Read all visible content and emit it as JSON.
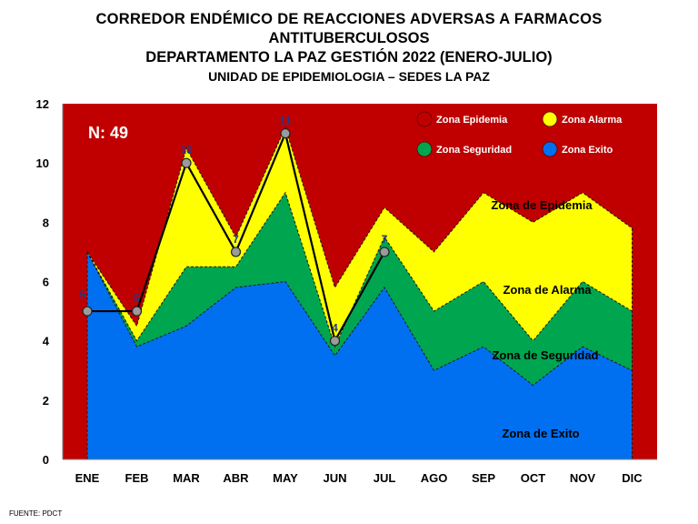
{
  "header": {
    "title_line1": "CORREDOR ENDÉMICO DE REACCIONES ADVERSAS  A FARMACOS",
    "title_line2": "ANTITUBERCULOSOS",
    "title_line3": "DEPARTAMENTO  LA PAZ GESTIÓN 2022 (ENERO-JULIO)",
    "subtitle": "UNIDAD DE EPIDEMIOLOGIA – SEDES LA PAZ"
  },
  "footer": {
    "source": "FUENTE:  PDCT"
  },
  "colors": {
    "epidemia": "#c00000",
    "alarma": "#ffff00",
    "seguridad": "#00a550",
    "exito": "#0070f0",
    "cases_line": "#000000",
    "marker_fill": "#9b9b9b",
    "point_label": "#1f3a8a"
  },
  "chart_data": {
    "type": "area",
    "categories": [
      "ENE",
      "FEB",
      "MAR",
      "ABR",
      "MAY",
      "JUN",
      "JUL",
      "AGO",
      "SEP",
      "OCT",
      "NOV",
      "DIC"
    ],
    "ylim": [
      0,
      12
    ],
    "yticks": [
      "0",
      "2",
      "4",
      "6",
      "8",
      "10",
      "12"
    ],
    "grid": false,
    "annotation": "N: 49",
    "legend_position": "top-right",
    "legend": [
      "Zona Epidemia",
      "Zona Alarma",
      "Zona Seguridad",
      "Zona Exito"
    ],
    "zone_labels": [
      "Zona de Epidemia",
      "Zona de Alarma",
      "Zona de Seguridad",
      "Zona de Exito"
    ],
    "series": [
      {
        "name": "Zona Exito",
        "values": [
          7,
          3.8,
          4.5,
          5.8,
          6,
          3.5,
          5.8,
          3,
          3.8,
          2.5,
          3.8,
          3
        ]
      },
      {
        "name": "Zona Seguridad",
        "values": [
          7,
          4,
          6.5,
          6.5,
          9,
          3.8,
          7.5,
          5,
          6,
          4,
          6,
          5
        ]
      },
      {
        "name": "Zona Alarma",
        "values": [
          7,
          4.5,
          10.5,
          7.5,
          11.2,
          5.8,
          8.5,
          7,
          9,
          8,
          9,
          7.8
        ]
      }
    ],
    "cases": {
      "x": [
        "ENE",
        "FEB",
        "MAR",
        "ABR",
        "MAY",
        "JUN",
        "JUL"
      ],
      "values": [
        5,
        5,
        10,
        7,
        11,
        4,
        7
      ],
      "labels": [
        "5",
        "5",
        "10",
        "7",
        "11",
        "4",
        "7"
      ]
    }
  }
}
